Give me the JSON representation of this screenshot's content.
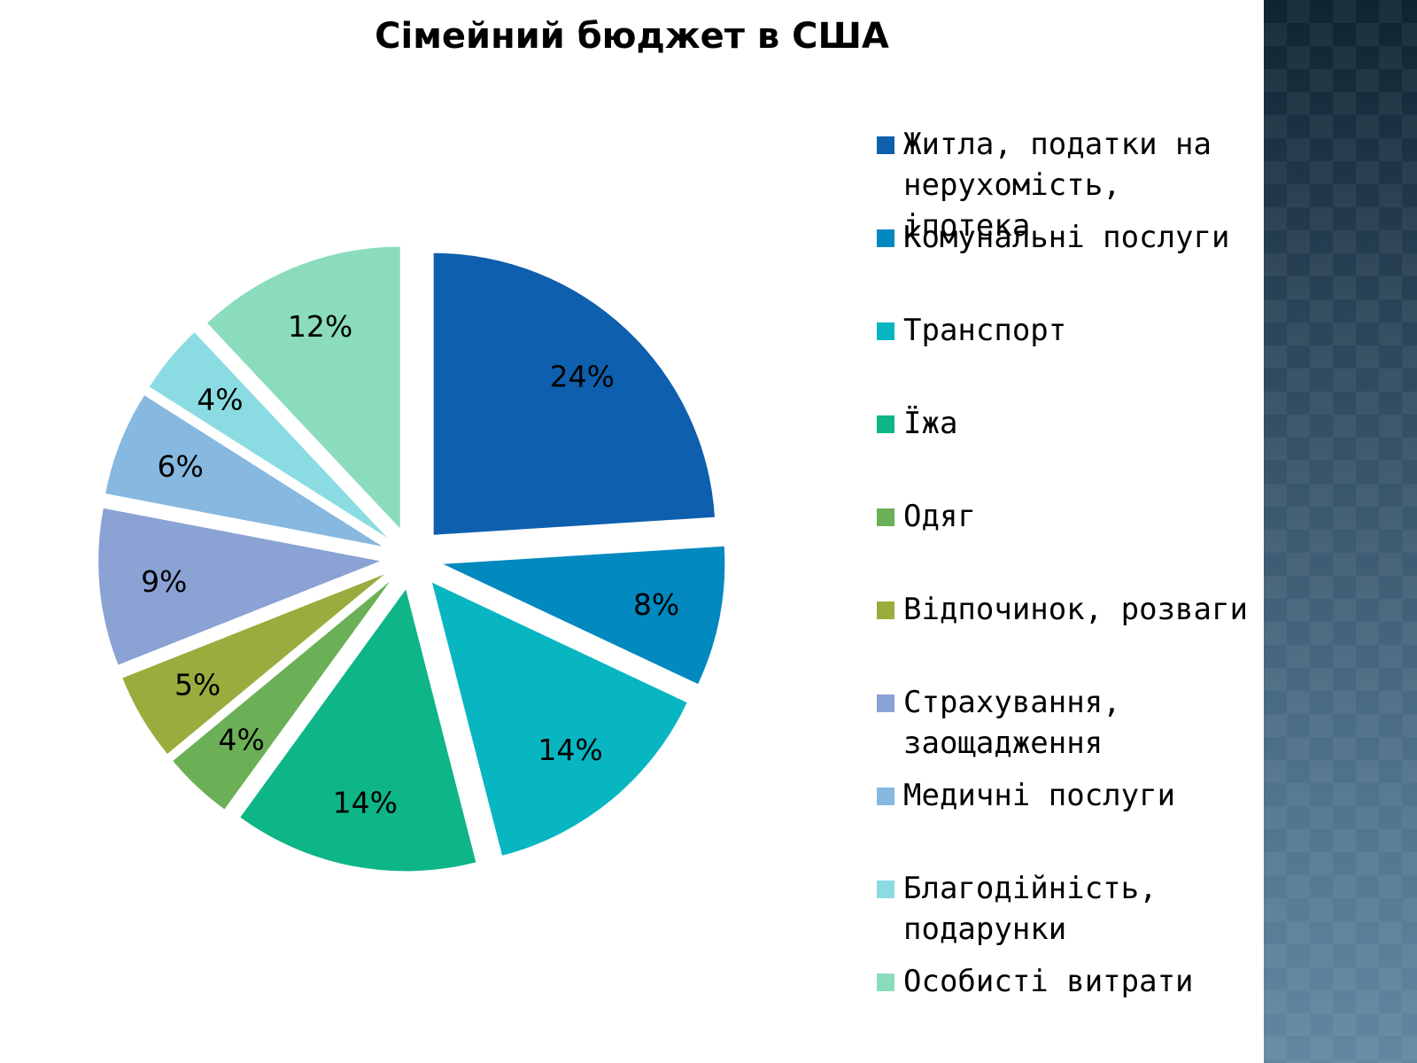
{
  "chart_data": {
    "type": "pie",
    "title": "Сімейний бюджет в США",
    "slices": [
      {
        "label": "Житла, податки на нерухомість, іпотека",
        "value": 24,
        "display": "24%",
        "color": "#0E5FAD"
      },
      {
        "label": "Комунальні послуги",
        "value": 8,
        "display": "8%",
        "color": "#0289BF"
      },
      {
        "label": "Транспорт",
        "value": 14,
        "display": "14%",
        "color": "#08B6C2"
      },
      {
        "label": "Їжа",
        "value": 14,
        "display": "14%",
        "color": "#0EB587"
      },
      {
        "label": "Одяг",
        "value": 4,
        "display": "4%",
        "color": "#6BB056"
      },
      {
        "label": "Відпочинок, розваги",
        "value": 5,
        "display": "5%",
        "color": "#98AD3E"
      },
      {
        "label": "Страхування, заощадження",
        "value": 9,
        "display": "9%",
        "color": "#8AA2D4"
      },
      {
        "label": "Медичні послуги",
        "value": 6,
        "display": "6%",
        "color": "#86B8E0"
      },
      {
        "label": "Благодійність, подарунки",
        "value": 4,
        "display": "4%",
        "color": "#8ADCE2"
      },
      {
        "label": "Особисті витрати",
        "value": 12,
        "display": "12%",
        "color": "#8ADCBC"
      }
    ],
    "legend_position": "right",
    "exploded": true
  },
  "legend": {
    "labels": [
      "Житла, податки на нерухомість, іпотека",
      "Комунальні послуги",
      "Транспорт",
      "Їжа",
      "Одяг",
      "Відпочинок, розваги",
      "Страхування, заощадження",
      "Медичні послуги",
      "Благодійність, подарунки",
      "Особисті витрати"
    ]
  }
}
